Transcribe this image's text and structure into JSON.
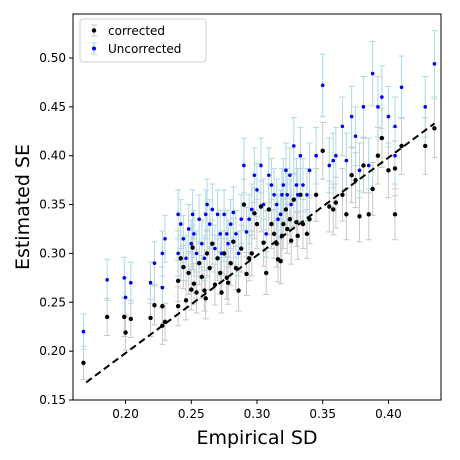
{
  "chart_data": {
    "type": "scatter",
    "title": "",
    "xlabel": "Empirical SD",
    "ylabel": "Estimated SE",
    "xlim": [
      0.16,
      0.44
    ],
    "ylim": [
      0.15,
      0.545
    ],
    "xticks": [
      0.2,
      0.25,
      0.3,
      0.35,
      0.4
    ],
    "yticks": [
      0.15,
      0.2,
      0.25,
      0.3,
      0.35,
      0.4,
      0.45,
      0.5
    ],
    "xtick_labels": [
      "0.20",
      "0.25",
      "0.30",
      "0.35",
      "0.40"
    ],
    "ytick_labels": [
      "0.15",
      "0.20",
      "0.25",
      "0.30",
      "0.35",
      "0.40",
      "0.45",
      "0.50"
    ],
    "legend_position": "top-left",
    "grid": false,
    "reference_line": {
      "style": "dashed",
      "color": "#000000",
      "x": [
        0.17,
        0.435
      ],
      "y": [
        0.168,
        0.433
      ]
    },
    "series": [
      {
        "name": "corrected",
        "color": "#000000",
        "errorbar_color": "#c8c8c8",
        "points": [
          [
            0.168,
            0.188,
            0.017
          ],
          [
            0.186,
            0.235,
            0.019
          ],
          [
            0.199,
            0.235,
            0.02
          ],
          [
            0.2,
            0.219,
            0.018
          ],
          [
            0.204,
            0.233,
            0.019
          ],
          [
            0.219,
            0.234,
            0.019
          ],
          [
            0.222,
            0.247,
            0.02
          ],
          [
            0.228,
            0.246,
            0.02
          ],
          [
            0.228,
            0.226,
            0.019
          ],
          [
            0.23,
            0.23,
            0.019
          ],
          [
            0.24,
            0.246,
            0.02
          ],
          [
            0.24,
            0.272,
            0.021
          ],
          [
            0.242,
            0.295,
            0.023
          ],
          [
            0.244,
            0.286,
            0.022
          ],
          [
            0.246,
            0.252,
            0.02
          ],
          [
            0.248,
            0.28,
            0.022
          ],
          [
            0.25,
            0.263,
            0.021
          ],
          [
            0.251,
            0.306,
            0.023
          ],
          [
            0.252,
            0.269,
            0.021
          ],
          [
            0.254,
            0.26,
            0.021
          ],
          [
            0.256,
            0.29,
            0.022
          ],
          [
            0.258,
            0.276,
            0.022
          ],
          [
            0.26,
            0.262,
            0.021
          ],
          [
            0.261,
            0.254,
            0.021
          ],
          [
            0.262,
            0.3,
            0.023
          ],
          [
            0.264,
            0.285,
            0.022
          ],
          [
            0.266,
            0.31,
            0.024
          ],
          [
            0.268,
            0.268,
            0.021
          ],
          [
            0.27,
            0.295,
            0.023
          ],
          [
            0.272,
            0.28,
            0.022
          ],
          [
            0.273,
            0.26,
            0.021
          ],
          [
            0.275,
            0.3,
            0.023
          ],
          [
            0.277,
            0.275,
            0.022
          ],
          [
            0.278,
            0.27,
            0.022
          ],
          [
            0.28,
            0.29,
            0.023
          ],
          [
            0.282,
            0.312,
            0.024
          ],
          [
            0.284,
            0.285,
            0.022
          ],
          [
            0.286,
            0.262,
            0.021
          ],
          [
            0.288,
            0.305,
            0.024
          ],
          [
            0.29,
            0.35,
            0.026
          ],
          [
            0.292,
            0.279,
            0.022
          ],
          [
            0.294,
            0.295,
            0.023
          ],
          [
            0.296,
            0.3,
            0.023
          ],
          [
            0.298,
            0.341,
            0.026
          ],
          [
            0.3,
            0.33,
            0.025
          ],
          [
            0.303,
            0.348,
            0.026
          ],
          [
            0.305,
            0.311,
            0.024
          ],
          [
            0.307,
            0.28,
            0.022
          ],
          [
            0.309,
            0.345,
            0.026
          ],
          [
            0.311,
            0.33,
            0.025
          ],
          [
            0.313,
            0.32,
            0.025
          ],
          [
            0.315,
            0.31,
            0.024
          ],
          [
            0.316,
            0.294,
            0.023
          ],
          [
            0.318,
            0.292,
            0.023
          ],
          [
            0.319,
            0.318,
            0.024
          ],
          [
            0.32,
            0.33,
            0.025
          ],
          [
            0.322,
            0.345,
            0.026
          ],
          [
            0.323,
            0.325,
            0.025
          ],
          [
            0.325,
            0.335,
            0.025
          ],
          [
            0.326,
            0.313,
            0.024
          ],
          [
            0.328,
            0.355,
            0.027
          ],
          [
            0.33,
            0.332,
            0.025
          ],
          [
            0.331,
            0.318,
            0.024
          ],
          [
            0.333,
            0.36,
            0.027
          ],
          [
            0.335,
            0.33,
            0.025
          ],
          [
            0.338,
            0.32,
            0.025
          ],
          [
            0.34,
            0.335,
            0.025
          ],
          [
            0.345,
            0.36,
            0.027
          ],
          [
            0.35,
            0.405,
            0.029
          ],
          [
            0.355,
            0.348,
            0.026
          ],
          [
            0.358,
            0.345,
            0.026
          ],
          [
            0.36,
            0.352,
            0.026
          ],
          [
            0.365,
            0.36,
            0.027
          ],
          [
            0.368,
            0.34,
            0.026
          ],
          [
            0.372,
            0.38,
            0.028
          ],
          [
            0.375,
            0.375,
            0.028
          ],
          [
            0.378,
            0.338,
            0.026
          ],
          [
            0.381,
            0.39,
            0.028
          ],
          [
            0.385,
            0.34,
            0.026
          ],
          [
            0.388,
            0.366,
            0.027
          ],
          [
            0.392,
            0.4,
            0.029
          ],
          [
            0.395,
            0.418,
            0.03
          ],
          [
            0.4,
            0.385,
            0.028
          ],
          [
            0.405,
            0.34,
            0.026
          ],
          [
            0.405,
            0.387,
            0.028
          ],
          [
            0.41,
            0.41,
            0.029
          ],
          [
            0.428,
            0.41,
            0.029
          ],
          [
            0.435,
            0.428,
            0.03
          ]
        ]
      },
      {
        "name": "Uncorrected",
        "color": "#0000ee",
        "errorbar_color": "#add8e6",
        "points": [
          [
            0.168,
            0.22,
            0.018
          ],
          [
            0.186,
            0.273,
            0.021
          ],
          [
            0.199,
            0.275,
            0.021
          ],
          [
            0.2,
            0.255,
            0.02
          ],
          [
            0.204,
            0.27,
            0.021
          ],
          [
            0.219,
            0.27,
            0.021
          ],
          [
            0.222,
            0.29,
            0.022
          ],
          [
            0.228,
            0.3,
            0.023
          ],
          [
            0.228,
            0.265,
            0.021
          ],
          [
            0.23,
            0.315,
            0.024
          ],
          [
            0.24,
            0.34,
            0.025
          ],
          [
            0.24,
            0.3,
            0.023
          ],
          [
            0.242,
            0.33,
            0.025
          ],
          [
            0.244,
            0.315,
            0.024
          ],
          [
            0.246,
            0.295,
            0.023
          ],
          [
            0.248,
            0.325,
            0.025
          ],
          [
            0.25,
            0.31,
            0.024
          ],
          [
            0.251,
            0.34,
            0.025
          ],
          [
            0.252,
            0.32,
            0.024
          ],
          [
            0.254,
            0.3,
            0.023
          ],
          [
            0.256,
            0.335,
            0.025
          ],
          [
            0.258,
            0.31,
            0.024
          ],
          [
            0.26,
            0.295,
            0.023
          ],
          [
            0.261,
            0.34,
            0.025
          ],
          [
            0.262,
            0.35,
            0.026
          ],
          [
            0.264,
            0.33,
            0.025
          ],
          [
            0.266,
            0.345,
            0.026
          ],
          [
            0.268,
            0.305,
            0.024
          ],
          [
            0.27,
            0.34,
            0.025
          ],
          [
            0.272,
            0.32,
            0.024
          ],
          [
            0.273,
            0.3,
            0.023
          ],
          [
            0.275,
            0.34,
            0.025
          ],
          [
            0.277,
            0.32,
            0.024
          ],
          [
            0.278,
            0.31,
            0.024
          ],
          [
            0.28,
            0.33,
            0.025
          ],
          [
            0.282,
            0.342,
            0.026
          ],
          [
            0.284,
            0.32,
            0.024
          ],
          [
            0.286,
            0.3,
            0.023
          ],
          [
            0.288,
            0.335,
            0.025
          ],
          [
            0.29,
            0.39,
            0.028
          ],
          [
            0.292,
            0.322,
            0.025
          ],
          [
            0.294,
            0.335,
            0.025
          ],
          [
            0.296,
            0.345,
            0.026
          ],
          [
            0.298,
            0.38,
            0.028
          ],
          [
            0.3,
            0.365,
            0.027
          ],
          [
            0.303,
            0.39,
            0.028
          ],
          [
            0.305,
            0.35,
            0.026
          ],
          [
            0.307,
            0.32,
            0.024
          ],
          [
            0.309,
            0.38,
            0.028
          ],
          [
            0.311,
            0.37,
            0.027
          ],
          [
            0.313,
            0.36,
            0.027
          ],
          [
            0.315,
            0.35,
            0.026
          ],
          [
            0.316,
            0.335,
            0.025
          ],
          [
            0.318,
            0.34,
            0.025
          ],
          [
            0.319,
            0.36,
            0.027
          ],
          [
            0.32,
            0.37,
            0.027
          ],
          [
            0.322,
            0.385,
            0.028
          ],
          [
            0.323,
            0.36,
            0.027
          ],
          [
            0.325,
            0.38,
            0.028
          ],
          [
            0.326,
            0.35,
            0.026
          ],
          [
            0.328,
            0.41,
            0.029
          ],
          [
            0.33,
            0.37,
            0.027
          ],
          [
            0.331,
            0.36,
            0.027
          ],
          [
            0.333,
            0.4,
            0.029
          ],
          [
            0.335,
            0.37,
            0.027
          ],
          [
            0.338,
            0.36,
            0.027
          ],
          [
            0.34,
            0.385,
            0.028
          ],
          [
            0.345,
            0.4,
            0.029
          ],
          [
            0.35,
            0.472,
            0.032
          ],
          [
            0.355,
            0.39,
            0.028
          ],
          [
            0.358,
            0.395,
            0.028
          ],
          [
            0.36,
            0.4,
            0.029
          ],
          [
            0.365,
            0.43,
            0.03
          ],
          [
            0.368,
            0.395,
            0.028
          ],
          [
            0.372,
            0.44,
            0.031
          ],
          [
            0.375,
            0.42,
            0.03
          ],
          [
            0.378,
            0.385,
            0.028
          ],
          [
            0.381,
            0.45,
            0.031
          ],
          [
            0.385,
            0.39,
            0.028
          ],
          [
            0.388,
            0.484,
            0.033
          ],
          [
            0.392,
            0.45,
            0.031
          ],
          [
            0.395,
            0.46,
            0.032
          ],
          [
            0.4,
            0.44,
            0.031
          ],
          [
            0.405,
            0.4,
            0.029
          ],
          [
            0.405,
            0.43,
            0.03
          ],
          [
            0.41,
            0.47,
            0.032
          ],
          [
            0.428,
            0.45,
            0.031
          ],
          [
            0.435,
            0.494,
            0.034
          ]
        ]
      }
    ]
  }
}
